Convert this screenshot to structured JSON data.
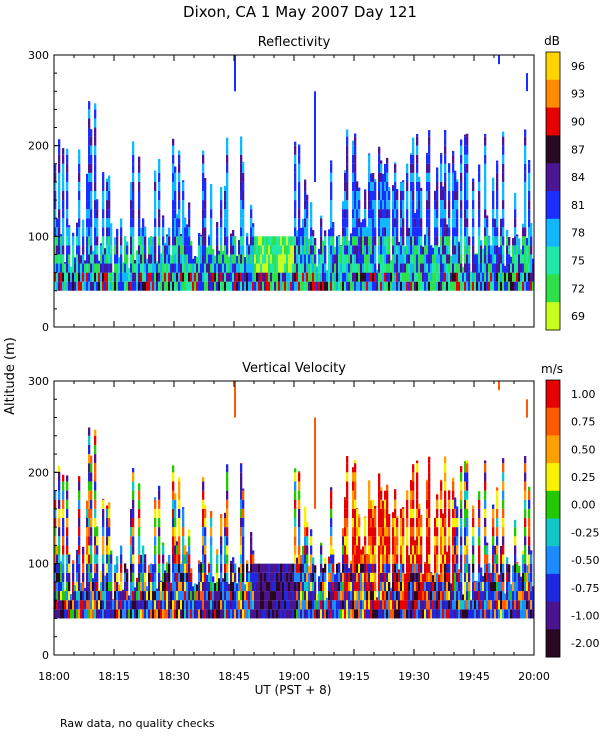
{
  "figure": {
    "title": "Dixon, CA  1 May 2007  Day 121",
    "footnote": "Raw data, no quality checks",
    "shared_ylabel": "Altitude (m)",
    "shared_xlabel": "UT  (PST + 8)"
  },
  "chart_data": [
    {
      "type": "heatmap",
      "title": "Reflectivity",
      "ylabel": "Altitude (m)",
      "xlabel": "UT  (PST + 8)",
      "x_range_minutes": [
        0,
        120
      ],
      "x_tick_labels": [
        "18:00",
        "18:15",
        "18:30",
        "18:45",
        "19:00",
        "19:15",
        "19:30",
        "19:45",
        "20:00"
      ],
      "ylim": [
        0,
        300
      ],
      "y_ticks": [
        0,
        100,
        200,
        300
      ],
      "colorbar": {
        "unit": "dB",
        "tick_labels": [
          "96",
          "93",
          "90",
          "87",
          "84",
          "81",
          "78",
          "75",
          "72",
          "69"
        ],
        "colors": [
          "#ffd400",
          "#ff8c00",
          "#e60000",
          "#2a0a22",
          "#4b1696",
          "#1a2eff",
          "#12b8ff",
          "#1fe8a8",
          "#2ee04a",
          "#c8ff1e"
        ]
      },
      "data_summary": {
        "min_altitude_m": 40,
        "typical_echo_top_m": 100,
        "max_echo_top_m": 300,
        "gap_minutes": [
          50,
          60
        ]
      }
    },
    {
      "type": "heatmap",
      "title": "Vertical Velocity",
      "ylabel": "Altitude (m)",
      "xlabel": "UT  (PST + 8)",
      "x_range_minutes": [
        0,
        120
      ],
      "x_tick_labels": [
        "18:00",
        "18:15",
        "18:30",
        "18:45",
        "19:00",
        "19:15",
        "19:30",
        "19:45",
        "20:00"
      ],
      "ylim": [
        0,
        300
      ],
      "y_ticks": [
        0,
        100,
        200,
        300
      ],
      "colorbar": {
        "unit": "m/s",
        "tick_labels": [
          "1.00",
          "0.75",
          "0.50",
          "0.25",
          "0.00",
          "-0.25",
          "-0.50",
          "-0.75",
          "-1.00",
          "-2.00"
        ],
        "colors": [
          "#e60000",
          "#ff5a00",
          "#ffa000",
          "#f6f200",
          "#22c800",
          "#10c8c8",
          "#1a8cff",
          "#1e28e0",
          "#4a1490",
          "#2a0822"
        ]
      },
      "data_summary": {
        "min_altitude_m": 40,
        "typical_echo_top_m": 100,
        "max_echo_top_m": 300,
        "gap_minutes": [
          50,
          60
        ]
      }
    }
  ]
}
